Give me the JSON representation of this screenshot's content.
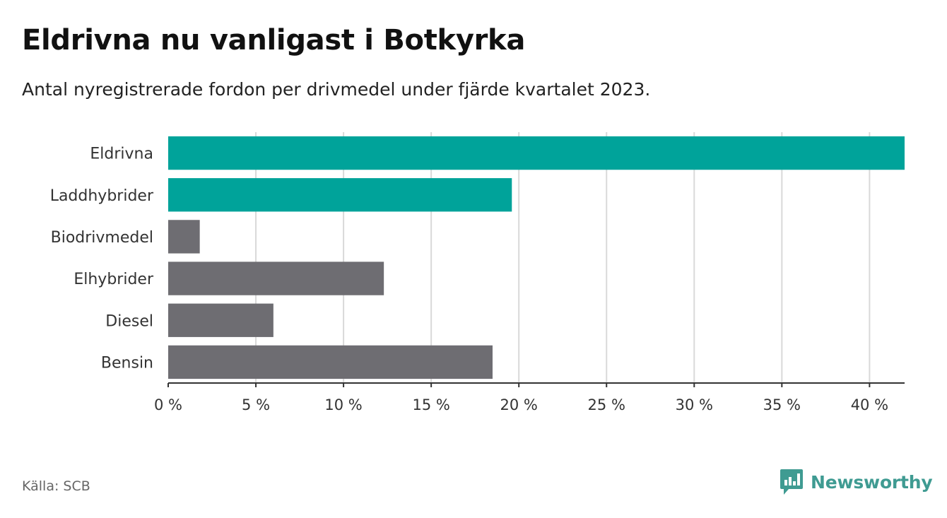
{
  "title": "Eldrivna nu vanligast i Botkyrka",
  "subtitle": "Antal nyregistrerade fordon per drivmedel under fjärde kvartalet 2023.",
  "source": "Källa: SCB",
  "logo": {
    "name": "Newsworthy",
    "icon": "bar-chart-speech-bubble-icon"
  },
  "colors": {
    "highlight": "#00a39a",
    "default": "#6e6d72",
    "grid": "#d9d9d9",
    "axis": "#333333"
  },
  "chart_data": {
    "type": "bar",
    "orientation": "horizontal",
    "categories": [
      "Eldrivna",
      "Laddhybrider",
      "Biodrivmedel",
      "Elhybrider",
      "Diesel",
      "Bensin"
    ],
    "values": [
      42.0,
      19.6,
      1.8,
      12.3,
      6.0,
      18.5
    ],
    "highlighted": [
      true,
      true,
      false,
      false,
      false,
      false
    ],
    "xlim": [
      0,
      42
    ],
    "xticks": [
      0,
      5,
      10,
      15,
      20,
      25,
      30,
      35,
      40
    ],
    "xtick_labels": [
      "0 %",
      "5 %",
      "10 %",
      "15 %",
      "20 %",
      "25 %",
      "30 %",
      "35 %",
      "40 %"
    ],
    "xlabel": "",
    "ylabel": "",
    "grid": "vertical"
  }
}
